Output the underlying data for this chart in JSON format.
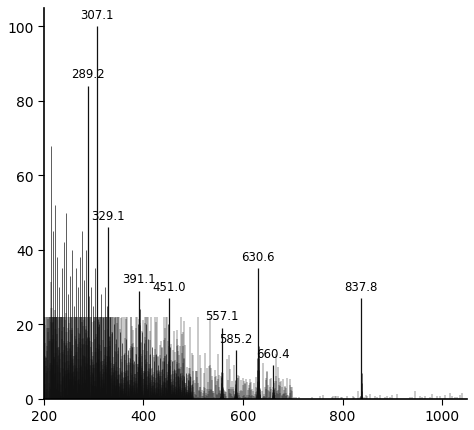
{
  "xlim": [
    200,
    1050
  ],
  "ylim": [
    0,
    105
  ],
  "xticks": [
    200,
    400,
    600,
    800,
    1000
  ],
  "yticks": [
    0,
    20,
    40,
    60,
    80,
    100
  ],
  "background_color": "#ffffff",
  "labeled_peaks": [
    {
      "mz": 289.2,
      "intensity": 84,
      "label": "289.2"
    },
    {
      "mz": 307.1,
      "intensity": 100,
      "label": "307.1"
    },
    {
      "mz": 329.1,
      "intensity": 46,
      "label": "329.1"
    },
    {
      "mz": 391.1,
      "intensity": 29,
      "label": "391.1"
    },
    {
      "mz": 451.0,
      "intensity": 27,
      "label": "451.0"
    },
    {
      "mz": 557.1,
      "intensity": 19,
      "label": "557.1"
    },
    {
      "mz": 585.2,
      "intensity": 13,
      "label": "585.2"
    },
    {
      "mz": 630.6,
      "intensity": 35,
      "label": "630.6"
    },
    {
      "mz": 660.4,
      "intensity": 9,
      "label": "660.4"
    },
    {
      "mz": 837.8,
      "intensity": 27,
      "label": "837.8"
    }
  ],
  "extra_peaks": [
    {
      "mz": 215,
      "intensity": 68
    },
    {
      "mz": 219,
      "intensity": 45
    },
    {
      "mz": 223,
      "intensity": 52
    },
    {
      "mz": 227,
      "intensity": 38
    },
    {
      "mz": 231,
      "intensity": 30
    },
    {
      "mz": 237,
      "intensity": 35
    },
    {
      "mz": 241,
      "intensity": 42
    },
    {
      "mz": 245,
      "intensity": 50
    },
    {
      "mz": 249,
      "intensity": 28
    },
    {
      "mz": 253,
      "intensity": 33
    },
    {
      "mz": 257,
      "intensity": 40
    },
    {
      "mz": 261,
      "intensity": 25
    },
    {
      "mz": 265,
      "intensity": 35
    },
    {
      "mz": 269,
      "intensity": 30
    },
    {
      "mz": 273,
      "intensity": 38
    },
    {
      "mz": 277,
      "intensity": 45
    },
    {
      "mz": 281,
      "intensity": 32
    },
    {
      "mz": 285,
      "intensity": 40
    },
    {
      "mz": 295,
      "intensity": 30
    },
    {
      "mz": 299,
      "intensity": 25
    },
    {
      "mz": 303,
      "intensity": 35
    },
    {
      "mz": 311,
      "intensity": 20
    },
    {
      "mz": 315,
      "intensity": 28
    },
    {
      "mz": 319,
      "intensity": 22
    },
    {
      "mz": 323,
      "intensity": 30
    },
    {
      "mz": 327,
      "intensity": 25
    },
    {
      "mz": 333,
      "intensity": 22
    },
    {
      "mz": 337,
      "intensity": 18
    },
    {
      "mz": 341,
      "intensity": 20
    },
    {
      "mz": 345,
      "intensity": 16
    },
    {
      "mz": 349,
      "intensity": 14
    },
    {
      "mz": 353,
      "intensity": 18
    },
    {
      "mz": 357,
      "intensity": 15
    },
    {
      "mz": 361,
      "intensity": 12
    },
    {
      "mz": 365,
      "intensity": 16
    },
    {
      "mz": 369,
      "intensity": 13
    },
    {
      "mz": 373,
      "intensity": 11
    },
    {
      "mz": 377,
      "intensity": 14
    },
    {
      "mz": 381,
      "intensity": 10
    },
    {
      "mz": 385,
      "intensity": 12
    },
    {
      "mz": 389,
      "intensity": 20
    },
    {
      "mz": 393,
      "intensity": 24
    },
    {
      "mz": 397,
      "intensity": 18
    },
    {
      "mz": 401,
      "intensity": 15
    },
    {
      "mz": 405,
      "intensity": 20
    },
    {
      "mz": 409,
      "intensity": 16
    },
    {
      "mz": 413,
      "intensity": 12
    },
    {
      "mz": 417,
      "intensity": 14
    },
    {
      "mz": 421,
      "intensity": 10
    },
    {
      "mz": 425,
      "intensity": 12
    },
    {
      "mz": 429,
      "intensity": 9
    },
    {
      "mz": 433,
      "intensity": 11
    },
    {
      "mz": 437,
      "intensity": 8
    },
    {
      "mz": 441,
      "intensity": 10
    },
    {
      "mz": 445,
      "intensity": 12
    },
    {
      "mz": 449,
      "intensity": 20
    },
    {
      "mz": 453,
      "intensity": 14
    },
    {
      "mz": 457,
      "intensity": 10
    },
    {
      "mz": 461,
      "intensity": 8
    },
    {
      "mz": 465,
      "intensity": 7
    },
    {
      "mz": 469,
      "intensity": 6
    },
    {
      "mz": 473,
      "intensity": 7
    },
    {
      "mz": 477,
      "intensity": 5
    },
    {
      "mz": 481,
      "intensity": 6
    },
    {
      "mz": 485,
      "intensity": 7
    },
    {
      "mz": 489,
      "intensity": 5
    },
    {
      "mz": 493,
      "intensity": 6
    },
    {
      "mz": 497,
      "intensity": 4
    }
  ],
  "noise_seed": 123,
  "line_color": "#111111",
  "tick_fontsize": 10,
  "label_fontsize": 8.5
}
